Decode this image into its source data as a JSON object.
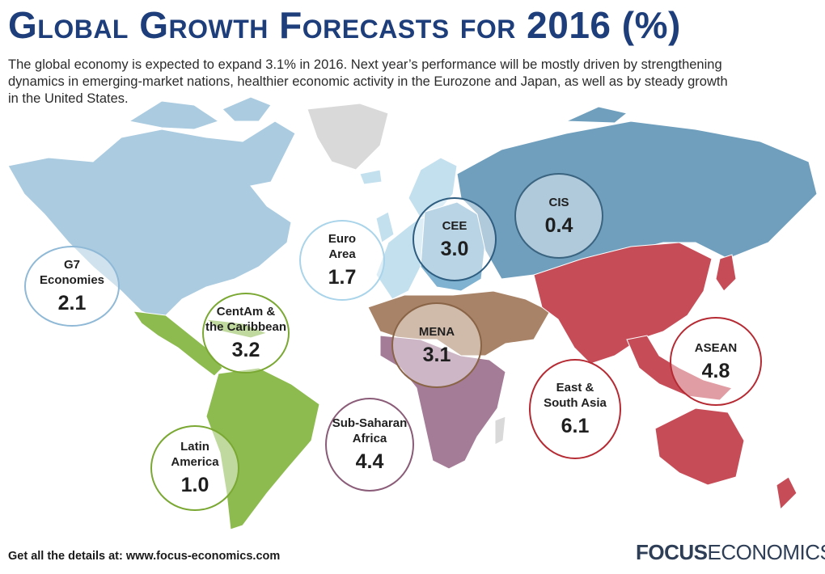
{
  "title": "Global Growth Forecasts for 2016 (%)",
  "subtitle": "The global economy is expected to expand 3.1% in 2016. Next year’s performance will be mostly driven by strengthening dynamics in emerging-market nations, healthier economic activity in the Eurozone and Japan, as well as by steady growth in the United States.",
  "footer": "Get all the details at: www.focus-economics.com",
  "logo": {
    "part1": "FOCUS",
    "part2": "ECONOMICS"
  },
  "colors": {
    "title": "#1d3e7a",
    "g7": "#aacbe0",
    "euro_area": "#c3e0ef",
    "cee": "#7fb1d0",
    "cis": "#6f9fbd",
    "centam": "#8dbb4f",
    "latin_america": "#8dbb4f",
    "mena": "#a98367",
    "ssa": "#a57c97",
    "asia": "#c64d58",
    "no_data": "#d9d9d9"
  },
  "regions": [
    {
      "id": "g7",
      "name": "G7\nEconomies",
      "value": "2.1",
      "ring": "#8fb9d6"
    },
    {
      "id": "euro",
      "name": "Euro\nArea",
      "value": "1.7",
      "ring": "#a9d4ea"
    },
    {
      "id": "cee",
      "name": "CEE",
      "value": "3.0",
      "ring": "#2e5d80"
    },
    {
      "id": "cis",
      "name": "CIS",
      "value": "0.4",
      "ring": "#3a6480"
    },
    {
      "id": "centam",
      "name": "CentAm &\nthe Caribbean",
      "value": "3.2",
      "ring": "#7aa833"
    },
    {
      "id": "mena",
      "name": "MENA",
      "value": "3.1",
      "ring": "#8a6446"
    },
    {
      "id": "asean",
      "name": "ASEAN",
      "value": "4.8",
      "ring": "#b52a33"
    },
    {
      "id": "esa",
      "name": "East &\nSouth Asia",
      "value": "6.1",
      "ring": "#b52a33"
    },
    {
      "id": "ssa",
      "name": "Sub-Saharan\nAfrica",
      "value": "4.4",
      "ring": "#8a5c78"
    },
    {
      "id": "latam",
      "name": "Latin\nAmerica",
      "value": "1.0",
      "ring": "#7aa833"
    }
  ]
}
